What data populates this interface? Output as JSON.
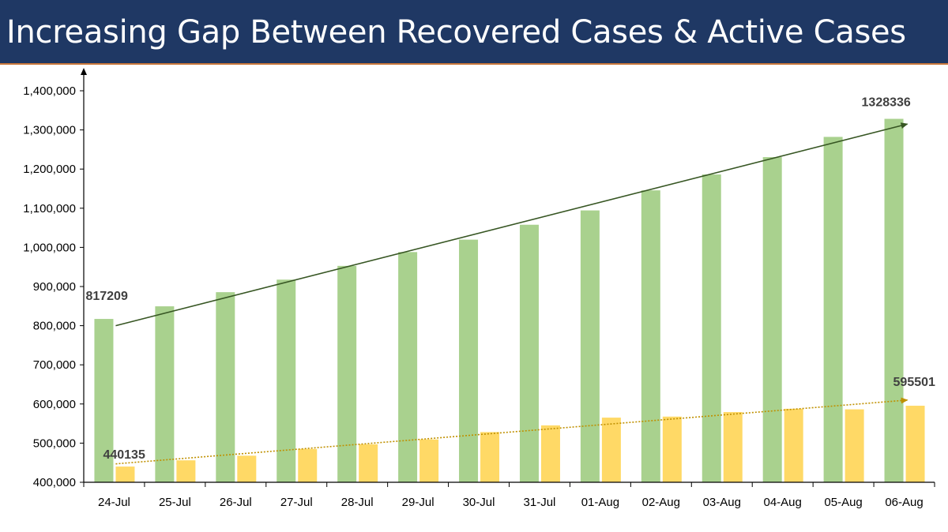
{
  "header": {
    "title": "Increasing Gap Between Recovered Cases & Active Cases"
  },
  "colors": {
    "header_bg": "#1f3864",
    "recovered": "#a9d18e",
    "active": "#ffd966",
    "recovered_trend": "#375623",
    "active_trend": "#bf9000"
  },
  "chart_data": {
    "type": "bar",
    "title": "Increasing Gap Between Recovered Cases & Active Cases",
    "xlabel": "",
    "ylabel": "",
    "ylim": [
      400000,
      1400000
    ],
    "yticks": [
      400000,
      500000,
      600000,
      700000,
      800000,
      900000,
      1000000,
      1100000,
      1200000,
      1300000,
      1400000
    ],
    "ytick_labels": [
      "400,000",
      "500,000",
      "600,000",
      "700,000",
      "800,000",
      "900,000",
      "1,000,000",
      "1,100,000",
      "1,200,000",
      "1,300,000",
      "1,400,000"
    ],
    "grid": false,
    "categories": [
      "24-Jul",
      "25-Jul",
      "26-Jul",
      "27-Jul",
      "28-Jul",
      "29-Jul",
      "30-Jul",
      "31-Jul",
      "01-Aug",
      "02-Aug",
      "03-Aug",
      "04-Aug",
      "05-Aug",
      "06-Aug"
    ],
    "series": [
      {
        "name": "Recovered Cases",
        "values": [
          817209,
          849432,
          885573,
          917568,
          952743,
          988029,
          1019735,
          1057805,
          1094374,
          1145629,
          1186203,
          1230509,
          1282215,
          1328336
        ]
      },
      {
        "name": "Active Cases",
        "values": [
          440135,
          456071,
          467882,
          485114,
          496988,
          509447,
          528242,
          545318,
          565103,
          567730,
          579357,
          587729,
          586298,
          595501
        ]
      }
    ],
    "trendlines": [
      {
        "series": "Recovered Cases",
        "style": "solid",
        "start": 800000,
        "end": 1315000
      },
      {
        "series": "Active Cases",
        "style": "dotted",
        "start": 447000,
        "end": 610000
      }
    ],
    "annotations": [
      {
        "series": "Recovered Cases",
        "category": "24-Jul",
        "text": "817209"
      },
      {
        "series": "Recovered Cases",
        "category": "06-Aug",
        "text": "1328336"
      },
      {
        "series": "Active Cases",
        "category": "24-Jul",
        "text": "440135"
      },
      {
        "series": "Active Cases",
        "category": "06-Aug",
        "text": "595501"
      }
    ]
  }
}
